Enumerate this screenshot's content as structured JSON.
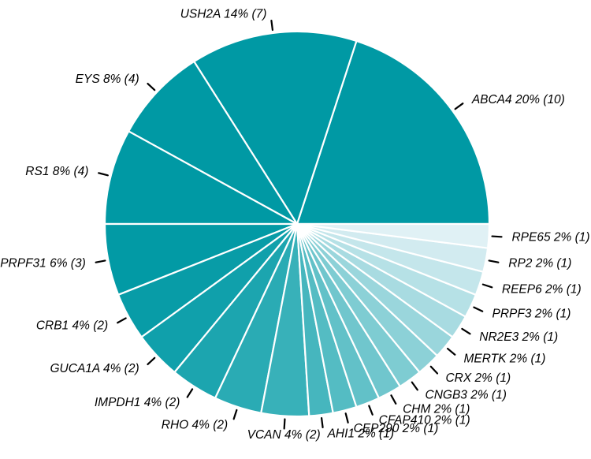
{
  "canvas": {
    "background": "#ffffff",
    "label_text_color": "#000000",
    "slice_divider_color": "#ffffff",
    "leader_tick_color": "#000000"
  },
  "chart_data": {
    "type": "pie",
    "title": "",
    "start_angle_deg": 0,
    "direction": "counterclockwise",
    "legend_position": "none",
    "label_style": "outside-radial-with-tick",
    "slices": [
      {
        "label": "ABCA4",
        "percent": 20,
        "count": 10,
        "display": "ABCA4 20% (10)",
        "color": "#0099A4"
      },
      {
        "label": "USH2A",
        "percent": 14,
        "count": 7,
        "display": "USH2A 14% (7)",
        "color": "#0099A4"
      },
      {
        "label": "EYS",
        "percent": 8,
        "count": 4,
        "display": "EYS 8% (4)",
        "color": "#0099A4"
      },
      {
        "label": "RS1",
        "percent": 8,
        "count": 4,
        "display": "RS1 8% (4)",
        "color": "#0099A4"
      },
      {
        "label": "PRPF31",
        "percent": 6,
        "count": 3,
        "display": "PRPF31 6% (3)",
        "color": "#029AA5"
      },
      {
        "label": "CRB1",
        "percent": 4,
        "count": 2,
        "display": "CRB1 4% (2)",
        "color": "#089CA7"
      },
      {
        "label": "GUCA1A",
        "percent": 4,
        "count": 2,
        "display": "GUCA1A 4% (2)",
        "color": "#10A0AB"
      },
      {
        "label": "IMPDH1",
        "percent": 4,
        "count": 2,
        "display": "IMPDH1 4% (2)",
        "color": "#1CA5AF"
      },
      {
        "label": "RHO",
        "percent": 4,
        "count": 2,
        "display": "RHO 4% (2)",
        "color": "#2AABB4"
      },
      {
        "label": "VCAN",
        "percent": 4,
        "count": 2,
        "display": "VCAN 4% (2)",
        "color": "#38B1B9"
      },
      {
        "label": "AHI1",
        "percent": 2,
        "count": 1,
        "display": "AHI1 2% (1)",
        "color": "#46B6BE"
      },
      {
        "label": "CEP290",
        "percent": 2,
        "count": 1,
        "display": "CEP290 2% (1)",
        "color": "#54BCC3"
      },
      {
        "label": "CFAP410",
        "percent": 2,
        "count": 1,
        "display": "CFAP410 2% (1)",
        "color": "#62C1C8"
      },
      {
        "label": "CHM",
        "percent": 2,
        "count": 1,
        "display": "CHM 2% (1)",
        "color": "#70C6CD"
      },
      {
        "label": "CNGB3",
        "percent": 2,
        "count": 1,
        "display": "CNGB3 2% (1)",
        "color": "#7ECCD2"
      },
      {
        "label": "CRX",
        "percent": 2,
        "count": 1,
        "display": "CRX 2% (1)",
        "color": "#8CD1D7"
      },
      {
        "label": "MERTK",
        "percent": 2,
        "count": 1,
        "display": "MERTK 2% (1)",
        "color": "#9AD6DC"
      },
      {
        "label": "NR2E3",
        "percent": 2,
        "count": 1,
        "display": "NR2E3 2% (1)",
        "color": "#A8DBE1"
      },
      {
        "label": "PRPF3",
        "percent": 2,
        "count": 1,
        "display": "PRPF3 2% (1)",
        "color": "#B6E1E6"
      },
      {
        "label": "REEP6",
        "percent": 2,
        "count": 1,
        "display": "REEP6 2% (1)",
        "color": "#C4E6EB"
      },
      {
        "label": "RP2",
        "percent": 2,
        "count": 1,
        "display": "RP2 2% (1)",
        "color": "#D2EBF0"
      },
      {
        "label": "RPE65",
        "percent": 2,
        "count": 1,
        "display": "RPE65 2% (1)",
        "color": "#E0F1F5"
      }
    ]
  }
}
